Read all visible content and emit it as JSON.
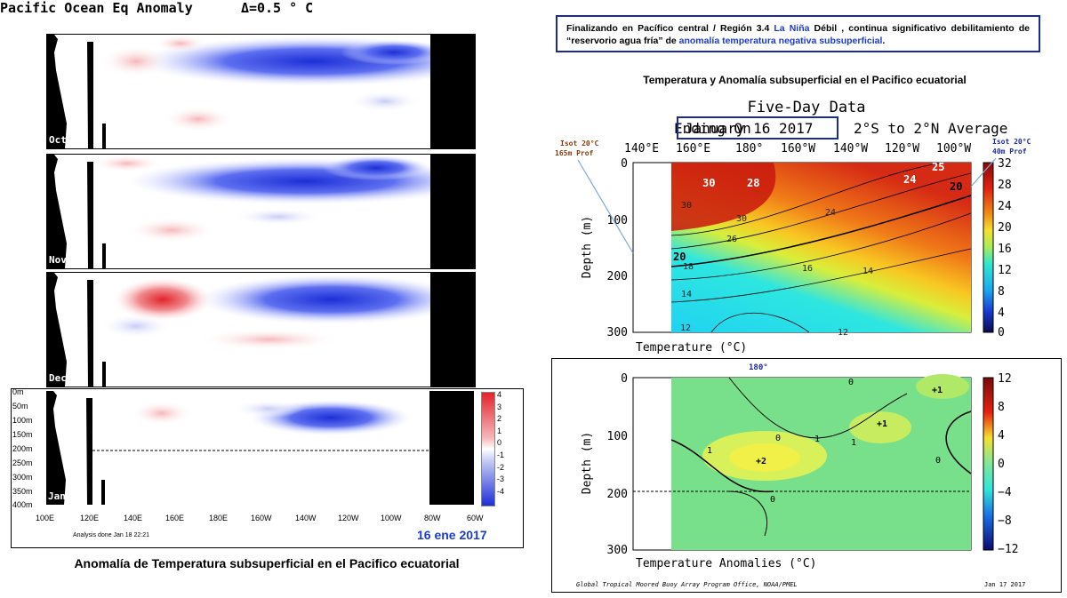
{
  "left": {
    "title": "Pacific Ocean Eq Anomaly",
    "delta": "Δ=0.5 ° C",
    "panels": [
      {
        "label": "Oct 16"
      },
      {
        "label": "Nov 16"
      },
      {
        "label": "Dec 16"
      },
      {
        "label": "Jan 17"
      }
    ],
    "depth_ticks": [
      "0m",
      "50m",
      "100m",
      "150m",
      "200m",
      "250m",
      "300m",
      "350m",
      "400m"
    ],
    "lon_ticks": [
      "100E",
      "120E",
      "140E",
      "160E",
      "180E",
      "160W",
      "140W",
      "120W",
      "100W",
      "80W",
      "60W"
    ],
    "colorbar_ticks": [
      "4",
      "3",
      "2",
      "1",
      "0",
      "-1",
      "-2",
      "-3",
      "-4"
    ],
    "analysis_text": "Analysis done Jan 18 22:21",
    "date_text": "16 ene 2017",
    "caption": "Anomalía de Temperatura subsuperficial en el Pacifico ecuatorial"
  },
  "note": {
    "part1": "Finalizando en Pacífico central / Región 3.4 ",
    "lanina": "La Niña",
    "part2": " Débil , continua significativo debilitamiento de “reservorio agua fría” de ",
    "part3": "anomalía temperatura negativa subsuperficial",
    "part4": "."
  },
  "right_title": "Temperatura y Anomalía subsuperficial en el Pacifico ecuatorial",
  "top_chart": {
    "title": "Five-Day Data",
    "ending_prefix": "Ending On",
    "ending_date": "January 16 2017",
    "average": "2°S to 2°N Average",
    "lon_ticks": [
      "140°E",
      "160°E",
      "180°",
      "160°W",
      "140°W",
      "120°W",
      "100°W"
    ],
    "depth_ticks": [
      "0",
      "100",
      "200",
      "300"
    ],
    "ylabel": "Depth (m)",
    "xlabel": "Temperature (°C)",
    "colorbar_ticks": [
      "32",
      "28",
      "24",
      "20",
      "16",
      "12",
      "8",
      "4",
      "0"
    ],
    "isot_left": [
      "Isot 20°C",
      "165m Prof"
    ],
    "isot_right": [
      "Isot 20°C",
      "40m Prof"
    ],
    "annotations": [
      "30",
      "28",
      "25",
      "24",
      "20",
      "20"
    ],
    "contour_labels": [
      "30",
      "30",
      "26",
      "24",
      "18",
      "16",
      "14",
      "14",
      "12",
      "12"
    ]
  },
  "bottom_chart": {
    "lon_label": "180°",
    "depth_ticks": [
      "0",
      "100",
      "200",
      "300"
    ],
    "ylabel": "Depth (m)",
    "xlabel": "Temperature Anomalies (°C)",
    "colorbar_ticks": [
      "12",
      "8",
      "4",
      "0",
      "−4",
      "−8",
      "−12"
    ],
    "annotations": [
      "+1",
      "+1",
      "+2"
    ],
    "contour_labels": [
      "0",
      "0",
      "0",
      "0",
      "1",
      "1",
      "1"
    ],
    "footer_left": "Global Tropical Moored Buoy Array Program Office, NOAA/PMEL",
    "footer_right": "Jan 17 2017"
  },
  "chart_data": [
    {
      "type": "heatmap",
      "title": "Pacific Ocean Eq Anomaly",
      "x_ticks": [
        "100E",
        "120E",
        "140E",
        "160E",
        "180E",
        "160W",
        "140W",
        "120W",
        "100W",
        "80W",
        "60W"
      ],
      "y_ticks": [
        "0m",
        "50m",
        "100m",
        "150m",
        "200m",
        "250m",
        "300m",
        "350m",
        "400m"
      ],
      "panels": [
        "Oct 16",
        "Nov 16",
        "Dec 16",
        "Jan 17"
      ],
      "colorbar": [
        -4,
        -3,
        -2,
        -1,
        0,
        1,
        2,
        3,
        4
      ]
    },
    {
      "type": "heatmap",
      "title": "Five-Day Data",
      "xlabel": "Temperature (°C)",
      "ylabel": "Depth (m)",
      "ylim": [
        0,
        300
      ],
      "colorbar": [
        0,
        32
      ],
      "contours": [
        12,
        14,
        16,
        18,
        20,
        24,
        26,
        28,
        30
      ]
    },
    {
      "type": "heatmap",
      "xlabel": "Temperature Anomalies (°C)",
      "ylabel": "Depth (m)",
      "ylim": [
        0,
        300
      ],
      "colorbar": [
        -12,
        12
      ],
      "annotations": [
        "+1",
        "+1",
        "+2"
      ]
    }
  ]
}
